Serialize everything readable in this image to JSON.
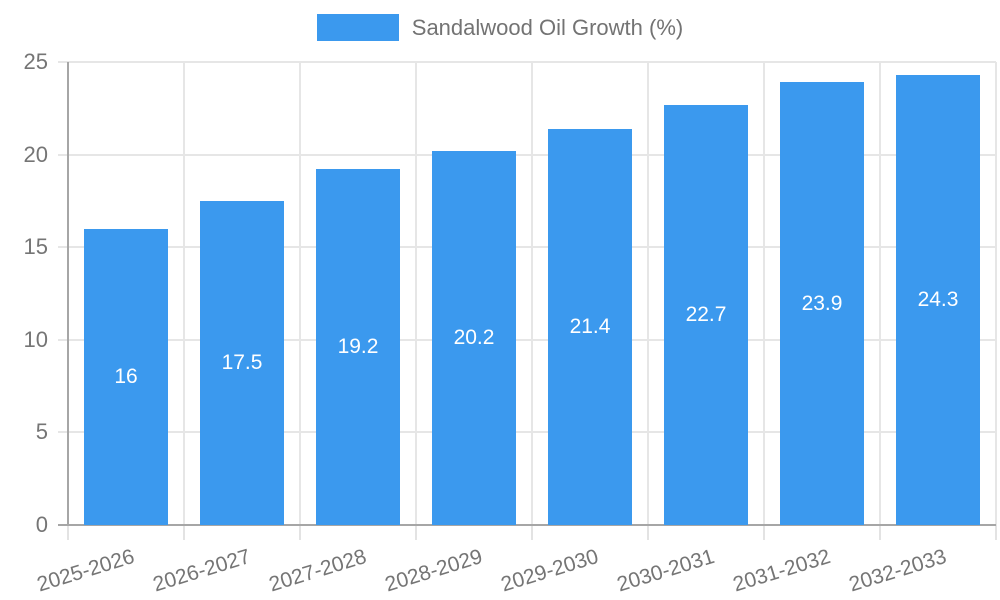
{
  "chart_data": {
    "type": "bar",
    "title": "Sandalwood Oil Growth (%)",
    "legend_position": "top",
    "legend_entries": [
      {
        "label": "Sandalwood Oil Growth (%)",
        "color": "#3b99ee"
      }
    ],
    "categories": [
      "2025-2026",
      "2026-2027",
      "2027-2028",
      "2028-2029",
      "2029-2030",
      "2030-2031",
      "2031-2032",
      "2032-2033"
    ],
    "series": [
      {
        "name": "Sandalwood Oil Growth (%)",
        "values": [
          16,
          17.5,
          19.2,
          20.2,
          21.4,
          22.7,
          23.9,
          24.3
        ],
        "value_labels": [
          "16",
          "17.5",
          "19.2",
          "20.2",
          "21.4",
          "22.7",
          "23.9",
          "24.3"
        ]
      }
    ],
    "xlabel": "",
    "ylabel": "",
    "ylim": [
      0,
      25
    ],
    "yticks": [
      "0",
      "5",
      "10",
      "15",
      "20",
      "25"
    ],
    "grid": true,
    "x_tick_rotation_deg": 17,
    "colors": {
      "bar": "#3b99ee",
      "value_label": "#ffffff",
      "gridline": "#e6e6e6",
      "axis_line": "#a6a6a6",
      "tick_label": "#757575",
      "legend_text": "#737373",
      "background": "#ffffff"
    }
  }
}
